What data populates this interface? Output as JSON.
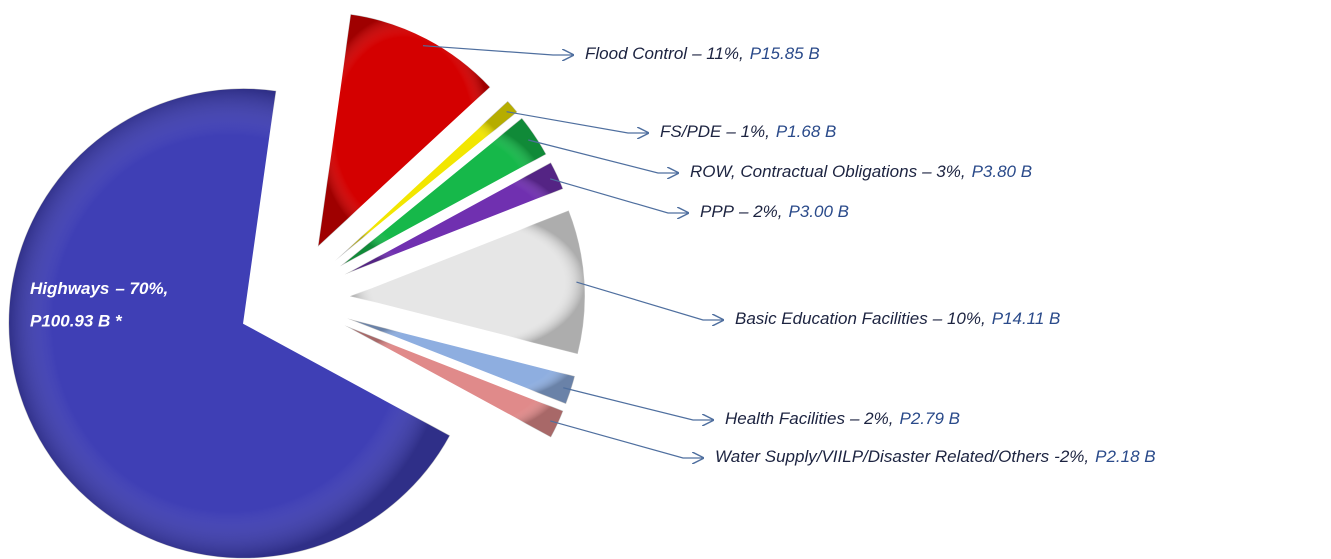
{
  "chart_data": {
    "type": "pie",
    "categories": [
      "Flood Control",
      "FS/PDE",
      "ROW, Contractual Obligations",
      "PPP",
      "Basic Education Facilities",
      "Health Facilities",
      "Water Supply/VIILP/Disaster Related/Others",
      "Highways"
    ],
    "values": [
      11,
      1,
      3,
      2,
      10,
      2,
      2,
      70
    ],
    "value_labels": [
      "– 11%,",
      "– 1%,",
      "– 3%,",
      "– 2%,",
      "– 10%,",
      "– 2%,",
      "-2%,",
      "– 70%,"
    ],
    "amounts": [
      15.85,
      1.68,
      3.8,
      3.0,
      14.11,
      2.79,
      2.18,
      100.93
    ],
    "amount_labels": [
      "P15.85 B",
      "P1.68 B",
      "P3.80 B",
      "P3.00 B",
      "P14.11 B",
      "P2.79 B",
      "P2.18 B",
      "P100.93 B *"
    ],
    "colors": [
      "#d40000",
      "#f2e600",
      "#16b84a",
      "#7030b0",
      "#e6e6e6",
      "#8eaee0",
      "#e08a8a",
      "#3f3fb5"
    ]
  }
}
